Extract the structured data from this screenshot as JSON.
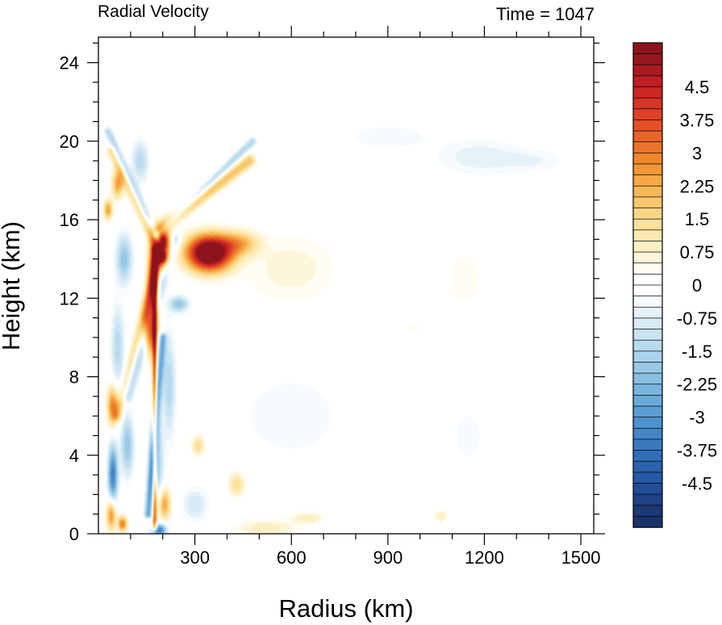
{
  "chart_data": {
    "type": "heatmap",
    "title_left": "Radial Velocity",
    "title_right": "Time = 1047",
    "xlabel": "Radius (km)",
    "ylabel": "Height (km)",
    "xlim": [
      0,
      1540
    ],
    "ylim": [
      0,
      25.3
    ],
    "xticks": [
      300,
      600,
      900,
      1200,
      1500
    ],
    "yticks": [
      0,
      4,
      8,
      12,
      16,
      20,
      24
    ],
    "colorbar": {
      "levels": [
        -5.25,
        -5,
        -4.75,
        -4.5,
        -4.25,
        -4,
        -3.75,
        -3.5,
        -3.25,
        -3,
        -2.75,
        -2.5,
        -2.25,
        -2,
        -1.75,
        -1.5,
        -1.25,
        -1,
        -0.75,
        -0.5,
        -0.25,
        0,
        0.25,
        0.5,
        0.75,
        1,
        1.25,
        1.5,
        1.75,
        2,
        2.25,
        2.5,
        2.75,
        3,
        3.25,
        3.5,
        3.75,
        4,
        4.25,
        4.5,
        4.75,
        5,
        5.25
      ],
      "labels": [
        "4.5",
        "3.75",
        "3",
        "2.25",
        "1.5",
        "0.75",
        "0",
        "-0.75",
        "-1.5",
        "-2.25",
        "-3",
        "-3.75",
        "-4.5"
      ],
      "label_values": [
        4.5,
        3.75,
        3,
        2.25,
        1.5,
        0.75,
        0,
        -0.75,
        -1.5,
        -2.25,
        -3,
        -3.75,
        -4.5
      ]
    },
    "features": [
      {
        "r": 345,
        "z": 14.3,
        "sr": 70,
        "sz": 0.9,
        "v": 7.0
      },
      {
        "r": 200,
        "z": 14.5,
        "sr": 25,
        "sz": 1.0,
        "v": 5.0
      },
      {
        "r": 440,
        "z": 14.8,
        "sr": 60,
        "sz": 0.6,
        "v": 2.0
      },
      {
        "r": 600,
        "z": 13.5,
        "sr": 130,
        "sz": 1.6,
        "v": 0.7
      },
      {
        "r": 1140,
        "z": 13.0,
        "sr": 60,
        "sz": 1.6,
        "v": 0.4
      },
      {
        "r": 170,
        "z": 12.5,
        "sr": 18,
        "sz": 2.5,
        "v": 4.0
      },
      {
        "r": 155,
        "z": 10.5,
        "sr": 18,
        "sz": 1.2,
        "v": 3.5
      },
      {
        "r": 45,
        "z": 6.5,
        "sr": 18,
        "sz": 1.0,
        "v": 3.0
      },
      {
        "r": 30,
        "z": 16.5,
        "sr": 14,
        "sz": 0.5,
        "v": 2.5
      },
      {
        "r": 60,
        "z": 17.8,
        "sr": 18,
        "sz": 0.7,
        "v": 2.5
      },
      {
        "r": 45,
        "z": 3.0,
        "sr": 15,
        "sz": 1.5,
        "v": -3.5
      },
      {
        "r": 90,
        "z": 4.5,
        "sr": 20,
        "sz": 1.5,
        "v": -2.0
      },
      {
        "r": 40,
        "z": 1.0,
        "sr": 15,
        "sz": 0.8,
        "v": 3.0
      },
      {
        "r": 75,
        "z": 0.5,
        "sr": 15,
        "sz": 0.4,
        "v": 3.0
      },
      {
        "r": 205,
        "z": 1.5,
        "sr": 20,
        "sz": 0.8,
        "v": 2.5
      },
      {
        "r": 190,
        "z": 0.2,
        "sr": 22,
        "sz": 0.3,
        "v": -3.5
      },
      {
        "r": 220,
        "z": 7.5,
        "sr": 20,
        "sz": 2.5,
        "v": -1.5
      },
      {
        "r": 250,
        "z": 11.7,
        "sr": 30,
        "sz": 0.4,
        "v": -2.0
      },
      {
        "r": 310,
        "z": 4.5,
        "sr": 20,
        "sz": 0.5,
        "v": 1.5
      },
      {
        "r": 430,
        "z": 2.5,
        "sr": 25,
        "sz": 0.6,
        "v": 1.5
      },
      {
        "r": 300,
        "z": 1.5,
        "sr": 40,
        "sz": 0.8,
        "v": -1.0
      },
      {
        "r": 520,
        "z": 0.3,
        "sr": 90,
        "sz": 0.4,
        "v": 1.0
      },
      {
        "r": 650,
        "z": 0.8,
        "sr": 50,
        "sz": 0.3,
        "v": 1.0
      },
      {
        "r": 900,
        "z": 20.2,
        "sr": 120,
        "sz": 0.6,
        "v": -0.5
      },
      {
        "r": 1180,
        "z": 19.2,
        "sr": 120,
        "sz": 0.9,
        "v": -0.7
      },
      {
        "r": 1350,
        "z": 19.0,
        "sr": 100,
        "sz": 0.6,
        "v": -0.5
      },
      {
        "r": 600,
        "z": 6.0,
        "sr": 150,
        "sz": 2.0,
        "v": -0.5
      },
      {
        "r": 1150,
        "z": 5.0,
        "sr": 50,
        "sz": 1.5,
        "v": -0.4
      },
      {
        "r": 130,
        "z": 19.0,
        "sr": 25,
        "sz": 1.0,
        "v": -1.5
      },
      {
        "r": 80,
        "z": 14.0,
        "sr": 25,
        "sz": 1.2,
        "v": -2.0
      },
      {
        "r": 60,
        "z": 9.5,
        "sr": 20,
        "sz": 2.0,
        "v": -1.5
      },
      {
        "r": 180,
        "z": 3.5,
        "sr": 20,
        "sz": 2.0,
        "v": -2.0
      },
      {
        "r": 980,
        "z": 10.5,
        "sr": 20,
        "sz": 0.4,
        "v": 0.4
      },
      {
        "r": 1065,
        "z": 0.9,
        "sr": 20,
        "sz": 0.3,
        "v": 1.0
      }
    ],
    "bands": [
      {
        "r0": 190,
        "z0": 15.5,
        "r1": 470,
        "z1": 19.0,
        "w": 15,
        "v": 2.0
      },
      {
        "r0": 180,
        "z0": 15.2,
        "r1": 480,
        "z1": 20.0,
        "w": 10,
        "v": -1.5
      },
      {
        "r0": 40,
        "z0": 19.5,
        "r1": 200,
        "z1": 14.0,
        "w": 12,
        "v": 1.5
      },
      {
        "r0": 30,
        "z0": 20.5,
        "r1": 200,
        "z1": 14.5,
        "w": 10,
        "v": -1.5
      },
      {
        "r0": 175,
        "z0": 0.3,
        "r1": 175,
        "z1": 14.5,
        "w": 6,
        "v": 3.5
      },
      {
        "r0": 155,
        "z0": 1.0,
        "r1": 200,
        "z1": 10.0,
        "w": 10,
        "v": -2.5
      },
      {
        "r0": 60,
        "z0": 6.0,
        "r1": 200,
        "z1": 15.0,
        "w": 12,
        "v": 1.5
      },
      {
        "r0": 90,
        "z0": 7.0,
        "r1": 240,
        "z1": 15.0,
        "w": 14,
        "v": -1.5
      }
    ]
  }
}
